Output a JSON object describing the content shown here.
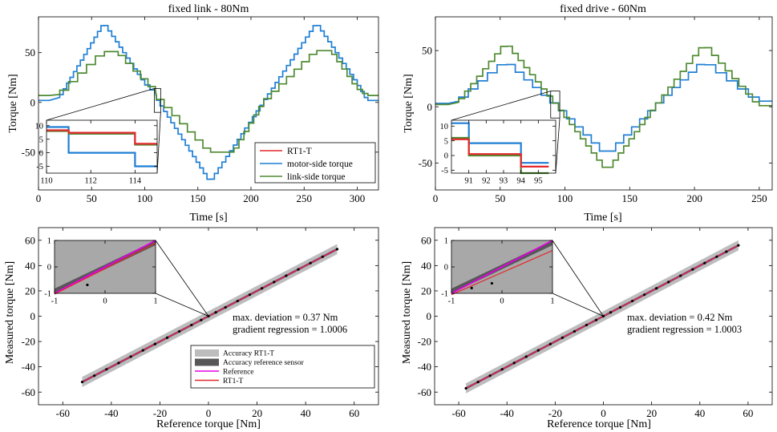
{
  "colors": {
    "rt1": "#e4292c",
    "motor": "#1f7fd4",
    "link": "#4f8a32",
    "reference": "#e600e6",
    "band_light": "#bdbdbd",
    "band_dark": "#575757",
    "inset_bg": "#a8a8a8",
    "points": "#000000"
  },
  "chart_data": [
    {
      "id": "p1",
      "type": "line",
      "title": "fixed link - 80Nm",
      "xlabel": "Time [s]",
      "ylabel": "Torque [Nm]",
      "xlim": [
        0,
        320
      ],
      "ylim": [
        -88,
        86
      ],
      "xticks": [
        0,
        50,
        100,
        150,
        200,
        250,
        300
      ],
      "yticks": [
        -50,
        0,
        50
      ],
      "series": [
        {
          "name": "motor-side torque",
          "color_key": "motor",
          "steps": 14,
          "x": [
            0,
            10,
            20,
            62,
            100,
            110,
            111,
            162,
            212,
            262,
            300,
            310,
            320
          ],
          "y": [
            2,
            2,
            5,
            80,
            20,
            10,
            5,
            -80,
            0,
            80,
            20,
            2,
            2
          ]
        },
        {
          "name": "link-side torque",
          "color_key": "link",
          "steps": 10,
          "x": [
            0,
            10,
            20,
            62,
            75,
            110,
            111,
            162,
            184,
            212,
            262,
            276,
            300,
            310,
            320
          ],
          "y": [
            7,
            7,
            8,
            51,
            51,
            12,
            7,
            -50,
            -50,
            0,
            52,
            52,
            15,
            7,
            7
          ]
        }
      ],
      "legend": [
        "RT1-T",
        "motor-side torque",
        "link-side torque"
      ],
      "zoom_box": {
        "x": [
          109,
          115
        ],
        "y": [
          -10,
          14
        ]
      },
      "inset": {
        "xlim": [
          110,
          115
        ],
        "ylim": [
          -7.5,
          12
        ],
        "xticks": [
          110,
          112,
          114
        ],
        "yticks": [
          -5,
          0,
          5,
          10
        ],
        "series": [
          {
            "name": "motor-side torque",
            "color_key": "motor",
            "x": [
              110,
              111,
              111,
              114,
              114,
              115
            ],
            "y": [
              9.5,
              9.5,
              0,
              0,
              -5,
              -5
            ]
          },
          {
            "name": "link-side torque",
            "color_key": "link",
            "x": [
              110,
              111,
              111,
              114,
              114,
              115
            ],
            "y": [
              8,
              8,
              7,
              7,
              3,
              3
            ]
          },
          {
            "name": "RT1-T",
            "color_key": "rt1",
            "x": [
              110,
              111,
              111,
              114,
              114,
              115
            ],
            "y": [
              8.3,
              8.3,
              7.4,
              7.4,
              3.3,
              3.3
            ]
          }
        ]
      }
    },
    {
      "id": "p2",
      "type": "line",
      "title": "fixed drive - 60Nm",
      "xlabel": "Time [s]",
      "ylabel": "Torque [Nm]",
      "xlim": [
        0,
        260
      ],
      "ylim": [
        -74,
        80
      ],
      "xticks": [
        0,
        50,
        100,
        150,
        200,
        250
      ],
      "yticks": [
        -50,
        0,
        50
      ],
      "series": [
        {
          "name": "motor-side torque",
          "color_key": "motor",
          "steps": 12,
          "x": [
            0,
            10,
            18,
            55,
            95,
            133,
            170,
            208,
            250,
            260
          ],
          "y": [
            3,
            3,
            5,
            41,
            0,
            -43,
            0,
            41,
            5,
            5
          ]
        },
        {
          "name": "link-side torque",
          "color_key": "link",
          "steps": 12,
          "x": [
            0,
            10,
            18,
            55,
            95,
            133,
            170,
            208,
            250,
            260
          ],
          "y": [
            2,
            2,
            4,
            57,
            0,
            -57,
            0,
            56,
            1,
            1
          ]
        }
      ],
      "zoom_box": {
        "x": [
          89,
          96
        ],
        "y": [
          -10,
          14
        ]
      },
      "inset": {
        "xlim": [
          90,
          96
        ],
        "ylim": [
          -6,
          12
        ],
        "xticks": [
          91,
          92,
          93,
          94,
          95
        ],
        "yticks": [
          -5,
          0,
          5,
          10
        ],
        "series": [
          {
            "name": "motor-side torque",
            "color_key": "motor",
            "x": [
              90,
              91,
              91,
              94,
              94,
              95.6
            ],
            "y": [
              11,
              11,
              4.2,
              4.2,
              -2.5,
              -2.5
            ]
          },
          {
            "name": "link-side torque",
            "color_key": "link",
            "x": [
              90,
              91,
              91,
              94,
              94,
              95.6
            ],
            "y": [
              6,
              6,
              0,
              0,
              -6,
              -6
            ]
          },
          {
            "name": "RT1-T",
            "color_key": "rt1",
            "x": [
              90,
              91,
              91,
              94,
              94,
              95.6
            ],
            "y": [
              5.5,
              5.5,
              0.5,
              0.5,
              -3.8,
              -3.8
            ]
          }
        ]
      }
    },
    {
      "id": "p3",
      "type": "scatter",
      "xlabel": "Reference torque [Nm]",
      "ylabel": "Measured torque [Nm]",
      "xlim": [
        -70,
        70
      ],
      "ylim": [
        -70,
        70
      ],
      "xticks": [
        -60,
        -40,
        -20,
        0,
        20,
        40,
        60
      ],
      "yticks": [
        -60,
        -40,
        -20,
        0,
        20,
        40,
        60
      ],
      "range": [
        -52,
        53
      ],
      "band_light": 4,
      "band_dark": 0.9,
      "points_x": [
        -52,
        -47,
        -42,
        -37,
        -32,
        -27,
        -22,
        -17,
        -12,
        -7,
        -3,
        0,
        3,
        7,
        12,
        17,
        22,
        27,
        32,
        37,
        42,
        47,
        53
      ],
      "annotation": [
        "max. deviation = 0.37 Nm",
        "gradient regression = 1.0006"
      ],
      "legend": [
        "Accuracy RT1-T",
        "Accuracy reference sensor",
        "Reference",
        "RT1-T"
      ],
      "inset": {
        "xlim": [
          -1,
          1
        ],
        "ylim": [
          -1,
          1
        ],
        "xtick_labels": [
          "-1",
          "0",
          "1"
        ],
        "ytick_labels": [
          "1",
          "0",
          "-1"
        ],
        "points": [
          [
            -0.35,
            -0.68
          ]
        ],
        "rt1_slope": 0.93,
        "rt1_offset": -0.1
      }
    },
    {
      "id": "p4",
      "type": "scatter",
      "xlabel": "Reference torque [Nm]",
      "ylabel": "Measured torque [Nm]",
      "xlim": [
        -70,
        70
      ],
      "ylim": [
        -70,
        70
      ],
      "xticks": [
        -60,
        -40,
        -20,
        0,
        20,
        40,
        60
      ],
      "yticks": [
        -60,
        -40,
        -20,
        0,
        20,
        40,
        60
      ],
      "range": [
        -57,
        56
      ],
      "band_light": 4,
      "band_dark": 0.9,
      "points_x": [
        -57,
        -52,
        -47,
        -42,
        -37,
        -32,
        -27,
        -22,
        -17,
        -12,
        -7,
        -3,
        0,
        3,
        7,
        12,
        17,
        22,
        27,
        32,
        37,
        42,
        47,
        51,
        56
      ],
      "annotation": [
        "max. deviation = 0.42 Nm",
        "gradient regression = 1.0003"
      ],
      "inset": {
        "xlim": [
          -1,
          1
        ],
        "ylim": [
          -1,
          1
        ],
        "xtick_labels": [
          "-1",
          "0",
          "1"
        ],
        "ytick_labels": [
          "1",
          "0",
          "-1"
        ],
        "points": [
          [
            -0.6,
            -0.8
          ],
          [
            -0.2,
            -0.62
          ]
        ],
        "rt1_slope": 0.8,
        "rt1_offset": -0.25
      }
    }
  ]
}
